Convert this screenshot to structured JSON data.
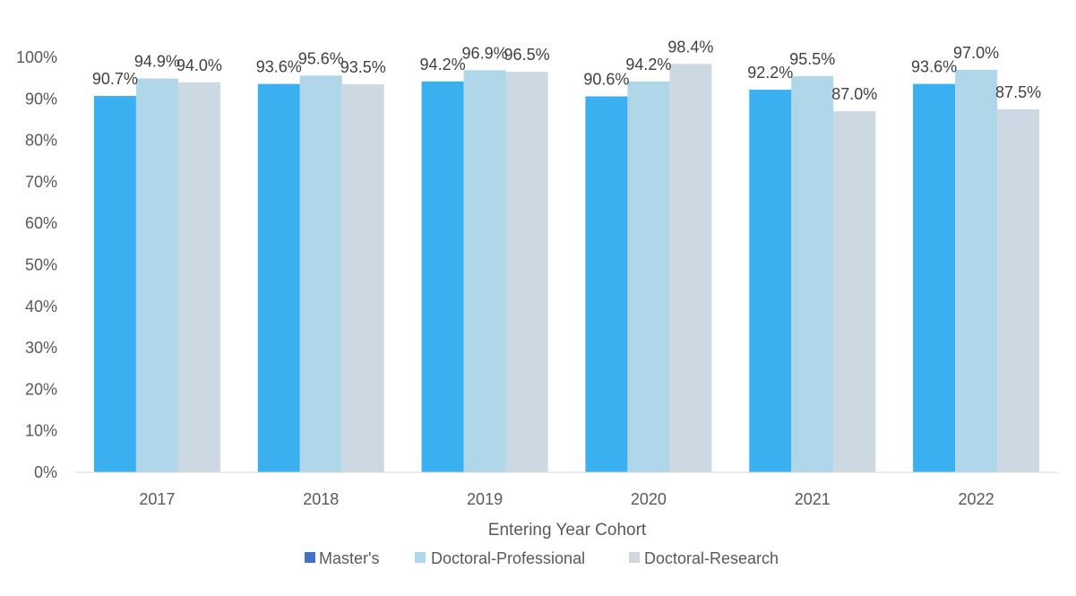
{
  "chart_data": {
    "type": "bar",
    "title": "",
    "xlabel": "Entering Year Cohort",
    "ylabel": "",
    "ylim": [
      0,
      100
    ],
    "yticks": [
      "0%",
      "10%",
      "20%",
      "30%",
      "40%",
      "50%",
      "60%",
      "70%",
      "80%",
      "90%",
      "100%"
    ],
    "ytick_values": [
      0,
      10,
      20,
      30,
      40,
      50,
      60,
      70,
      80,
      90,
      100
    ],
    "grid": false,
    "legend_position": "bottom",
    "categories": [
      "2017",
      "2018",
      "2019",
      "2020",
      "2021",
      "2022"
    ],
    "series": [
      {
        "name": "Master's",
        "legend_color": "#4472C4",
        "bar_color": "#3BB0F0",
        "values": [
          90.7,
          93.6,
          94.2,
          90.6,
          92.2,
          93.6
        ],
        "labels": [
          "90.7%",
          "93.6%",
          "94.2%",
          "90.6%",
          "92.2%",
          "93.6%"
        ]
      },
      {
        "name": "Doctoral-Professional",
        "legend_color": "#B0D6EA",
        "bar_color": "#B0D6EA",
        "values": [
          94.9,
          95.6,
          96.9,
          94.2,
          95.5,
          97.0
        ],
        "labels": [
          "94.9%",
          "95.6%",
          "96.9%",
          "94.2%",
          "95.5%",
          "97.0%"
        ]
      },
      {
        "name": "Doctoral-Research",
        "legend_color": "#CCD9E2",
        "bar_color": "#CCD9E2",
        "values": [
          94.0,
          93.5,
          96.5,
          98.4,
          87.0,
          87.5
        ],
        "labels": [
          "94.0%",
          "93.5%",
          "96.5%",
          "98.4%",
          "87.0%",
          "87.5%"
        ]
      }
    ]
  }
}
